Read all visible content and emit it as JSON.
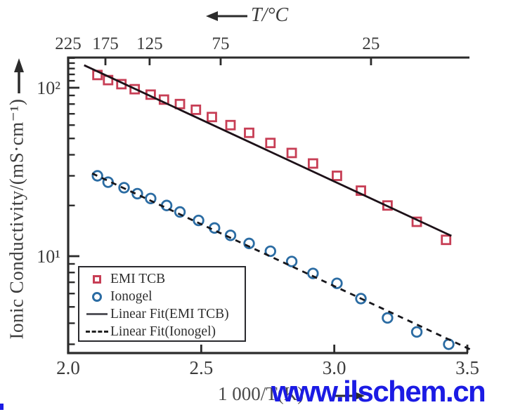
{
  "watermark": {
    "text": "www.ilschem.cn",
    "color": "#1b1be4"
  },
  "axes": {
    "top": {
      "title": "T/°C"
    },
    "bottom": {
      "title": "1 000/T(K)"
    },
    "left": {
      "title": "Ionic Conductivity/(mS·cm⁻¹)"
    }
  },
  "legend": {
    "items": [
      {
        "label": "EMI TCB",
        "marker": "square",
        "color": "#c73e55"
      },
      {
        "label": "Ionogel",
        "marker": "circle",
        "color": "#2b6ca3"
      },
      {
        "label": "Linear Fit(EMI TCB)",
        "marker": "solid-line",
        "color": "#55555c"
      },
      {
        "label": "Linear Fit(Ionogel)",
        "marker": "dashed-line",
        "color": "#222222"
      }
    ]
  },
  "chart_data": {
    "type": "scatter",
    "title": "",
    "xlabel": "1 000/T(K)",
    "ylabel": "Ionic Conductivity/(mS·cm⁻¹)",
    "top_axis_label": "T/°C",
    "xlim": [
      2.0,
      3.5
    ],
    "ylim": [
      2.7,
      150
    ],
    "yscale": "log",
    "grid": false,
    "legend_position": "lower-left",
    "x_ticks": [
      {
        "value": 2.0,
        "label": "2.0"
      },
      {
        "value": 2.5,
        "label": "2.5"
      },
      {
        "value": 3.0,
        "label": "3.0"
      },
      {
        "value": 3.5,
        "label": "3.5"
      }
    ],
    "top_ticks": [
      {
        "value": 2.0,
        "label": "225"
      },
      {
        "value": 2.14,
        "label": "175"
      },
      {
        "value": 2.306,
        "label": "125"
      },
      {
        "value": 2.573,
        "label": "75"
      },
      {
        "value": 3.138,
        "label": "25"
      }
    ],
    "y_major_ticks": [
      {
        "value": 100,
        "label": "10²"
      },
      {
        "value": 10,
        "label": "10¹"
      }
    ],
    "y_minor_ticks": [
      3,
      4,
      5,
      6,
      7,
      8,
      9,
      20,
      30,
      40,
      50,
      60,
      70,
      80,
      90,
      110,
      120,
      130,
      140,
      150
    ],
    "series": [
      {
        "name": "EMI TCB",
        "kind": "scatter",
        "marker": "square",
        "color": "#c73e55",
        "x": [
          2.11,
          2.15,
          2.2,
          2.25,
          2.31,
          2.36,
          2.42,
          2.48,
          2.54,
          2.61,
          2.68,
          2.76,
          2.84,
          2.92,
          3.01,
          3.1,
          3.2,
          3.31,
          3.42
        ],
        "y": [
          119,
          111,
          105,
          98,
          91,
          85,
          80,
          74,
          67,
          60,
          54,
          47,
          41,
          35.5,
          30,
          24.5,
          20,
          16,
          12.5
        ]
      },
      {
        "name": "Ionogel",
        "kind": "scatter",
        "marker": "circle",
        "color": "#2b6ca3",
        "x": [
          2.11,
          2.15,
          2.21,
          2.26,
          2.31,
          2.37,
          2.42,
          2.49,
          2.55,
          2.61,
          2.68,
          2.76,
          2.84,
          2.92,
          3.01,
          3.1,
          3.2,
          3.31,
          3.43
        ],
        "y": [
          30,
          27.5,
          25.5,
          23.5,
          22,
          20,
          18.3,
          16.3,
          14.7,
          13.3,
          11.9,
          10.7,
          9.3,
          7.9,
          6.9,
          5.6,
          4.3,
          3.55,
          3.0
        ]
      },
      {
        "name": "Linear Fit(EMI TCB)",
        "kind": "line",
        "style": "solid",
        "color": "#1d1118",
        "x": [
          2.06,
          3.44
        ],
        "y": [
          136,
          13.2
        ]
      },
      {
        "name": "Linear Fit(Ionogel)",
        "kind": "line",
        "style": "dashed",
        "color": "#17171c",
        "x": [
          2.09,
          3.51
        ],
        "y": [
          31,
          2.8
        ]
      }
    ]
  }
}
